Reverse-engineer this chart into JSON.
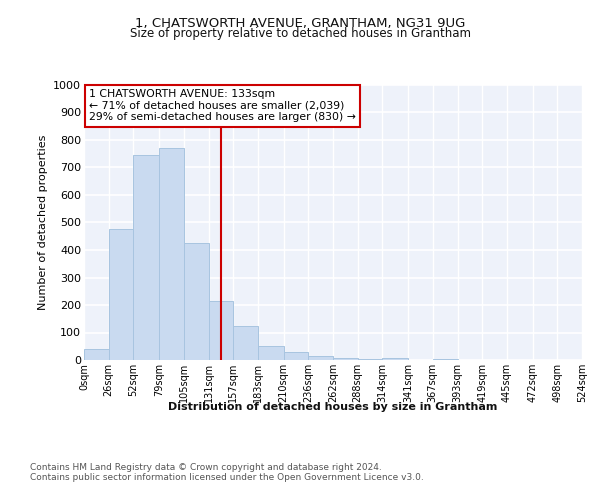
{
  "title": "1, CHATSWORTH AVENUE, GRANTHAM, NG31 9UG",
  "subtitle": "Size of property relative to detached houses in Grantham",
  "xlabel": "Distribution of detached houses by size in Grantham",
  "ylabel": "Number of detached properties",
  "bar_color": "#c9daf0",
  "bar_edgecolor": "#a8c4e0",
  "bg_color": "#eef2fa",
  "grid_color": "#ffffff",
  "vline_color": "#cc0000",
  "annotation_box_color": "#cc0000",
  "annotation_lines": [
    "1 CHATSWORTH AVENUE: 133sqm",
    "← 71% of detached houses are smaller (2,039)",
    "29% of semi-detached houses are larger (830) →"
  ],
  "bin_edges": [
    0,
    26,
    52,
    79,
    105,
    131,
    157,
    183,
    210,
    236,
    262,
    288,
    314,
    341,
    367,
    393,
    419,
    445,
    472,
    498,
    524
  ],
  "bin_labels": [
    "0sqm",
    "26sqm",
    "52sqm",
    "79sqm",
    "105sqm",
    "131sqm",
    "157sqm",
    "183sqm",
    "210sqm",
    "236sqm",
    "262sqm",
    "288sqm",
    "314sqm",
    "341sqm",
    "367sqm",
    "393sqm",
    "419sqm",
    "445sqm",
    "472sqm",
    "498sqm",
    "524sqm"
  ],
  "bar_heights": [
    40,
    475,
    745,
    770,
    425,
    215,
    125,
    50,
    28,
    13,
    8,
    2,
    7,
    0,
    2,
    0,
    0,
    0,
    0,
    0
  ],
  "ylim": [
    0,
    1000
  ],
  "yticks": [
    0,
    100,
    200,
    300,
    400,
    500,
    600,
    700,
    800,
    900,
    1000
  ],
  "vline_x": 144,
  "footer1": "Contains HM Land Registry data © Crown copyright and database right 2024.",
  "footer2": "Contains public sector information licensed under the Open Government Licence v3.0."
}
